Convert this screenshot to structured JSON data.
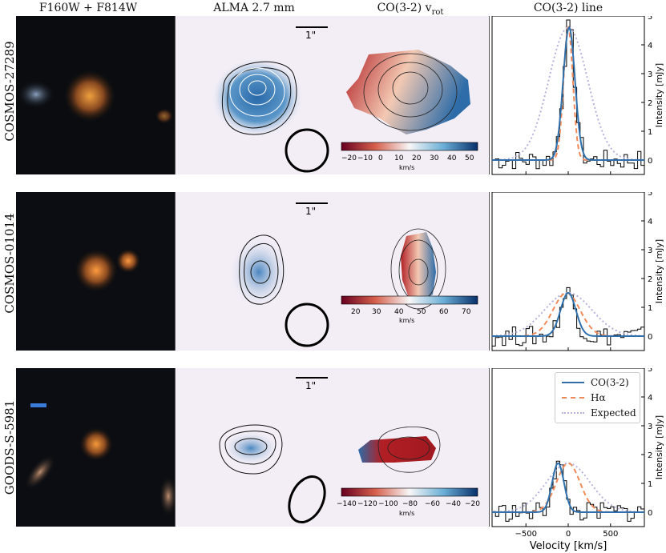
{
  "columns": {
    "hst": "F160W + F814W",
    "alma": "ALMA 2.7 mm",
    "vrot_prefix": "CO(3-2) v",
    "vrot_sub": "rot",
    "line": "CO(3-2) line"
  },
  "rows": [
    {
      "name": "COSMOS-27289",
      "scale_bar": "1\"",
      "cbar_ticks": [
        "−20",
        "−10",
        "0",
        "10",
        "20",
        "30",
        "40",
        "50"
      ],
      "cbar_unit": "km/s"
    },
    {
      "name": "COSMOS-01014",
      "scale_bar": "1\"",
      "cbar_ticks": [
        "20",
        "30",
        "40",
        "50",
        "60",
        "70"
      ],
      "cbar_unit": "km/s"
    },
    {
      "name": "GOODS-S-5981",
      "scale_bar": "1\"",
      "cbar_ticks": [
        "−140",
        "−120",
        "−100",
        "−80",
        "−60",
        "−40",
        "−20"
      ],
      "cbar_unit": "km/s"
    }
  ],
  "spectra": {
    "ylabel": "Intensity [mJy]",
    "xlabel": "Velocity [km/s]",
    "xticks": [
      "−500",
      "0",
      "500"
    ],
    "yticks": [
      "0",
      "1",
      "2",
      "3",
      "4",
      "5"
    ],
    "legend": {
      "co": "CO(3-2)",
      "ha": "Hα",
      "expected": "Expected"
    },
    "colors": {
      "co": "#2e6fac",
      "ha": "#f08a5a",
      "expected": "#b8b2dc"
    }
  },
  "chart_data": [
    {
      "type": "line",
      "title": "COSMOS-27289 CO(3-2) line",
      "xlabel": "Velocity [km/s]",
      "ylabel": "Intensity [mJy]",
      "xlim": [
        -900,
        900
      ],
      "ylim": [
        -0.5,
        5
      ],
      "series": [
        {
          "name": "CO(3-2)",
          "amp": 4.6,
          "center": 10,
          "sigma": 70
        },
        {
          "name": "Hα",
          "amp": 4.6,
          "center": 0,
          "sigma": 55
        },
        {
          "name": "Expected",
          "amp": 4.6,
          "center": 0,
          "sigma": 230
        }
      ]
    },
    {
      "type": "line",
      "title": "COSMOS-01014 CO(3-2) line",
      "xlabel": "Velocity [km/s]",
      "ylabel": "Intensity [mJy]",
      "xlim": [
        -900,
        900
      ],
      "ylim": [
        -0.5,
        5
      ],
      "series": [
        {
          "name": "CO(3-2)",
          "amp": 1.5,
          "center": 0,
          "sigma": 90
        },
        {
          "name": "Hα",
          "amp": 1.5,
          "center": -20,
          "sigma": 160
        },
        {
          "name": "Expected",
          "amp": 1.5,
          "center": 0,
          "sigma": 280
        }
      ]
    },
    {
      "type": "line",
      "title": "GOODS-S-5981 CO(3-2) line",
      "xlabel": "Velocity [km/s]",
      "ylabel": "Intensity [mJy]",
      "xlim": [
        -900,
        900
      ],
      "ylim": [
        -0.5,
        5
      ],
      "series": [
        {
          "name": "CO(3-2)",
          "amp": 1.7,
          "center": -120,
          "sigma": 70
        },
        {
          "name": "Hα",
          "amp": 1.7,
          "center": 0,
          "sigma": 140
        },
        {
          "name": "Expected",
          "amp": 1.7,
          "center": 0,
          "sigma": 260
        }
      ]
    }
  ]
}
